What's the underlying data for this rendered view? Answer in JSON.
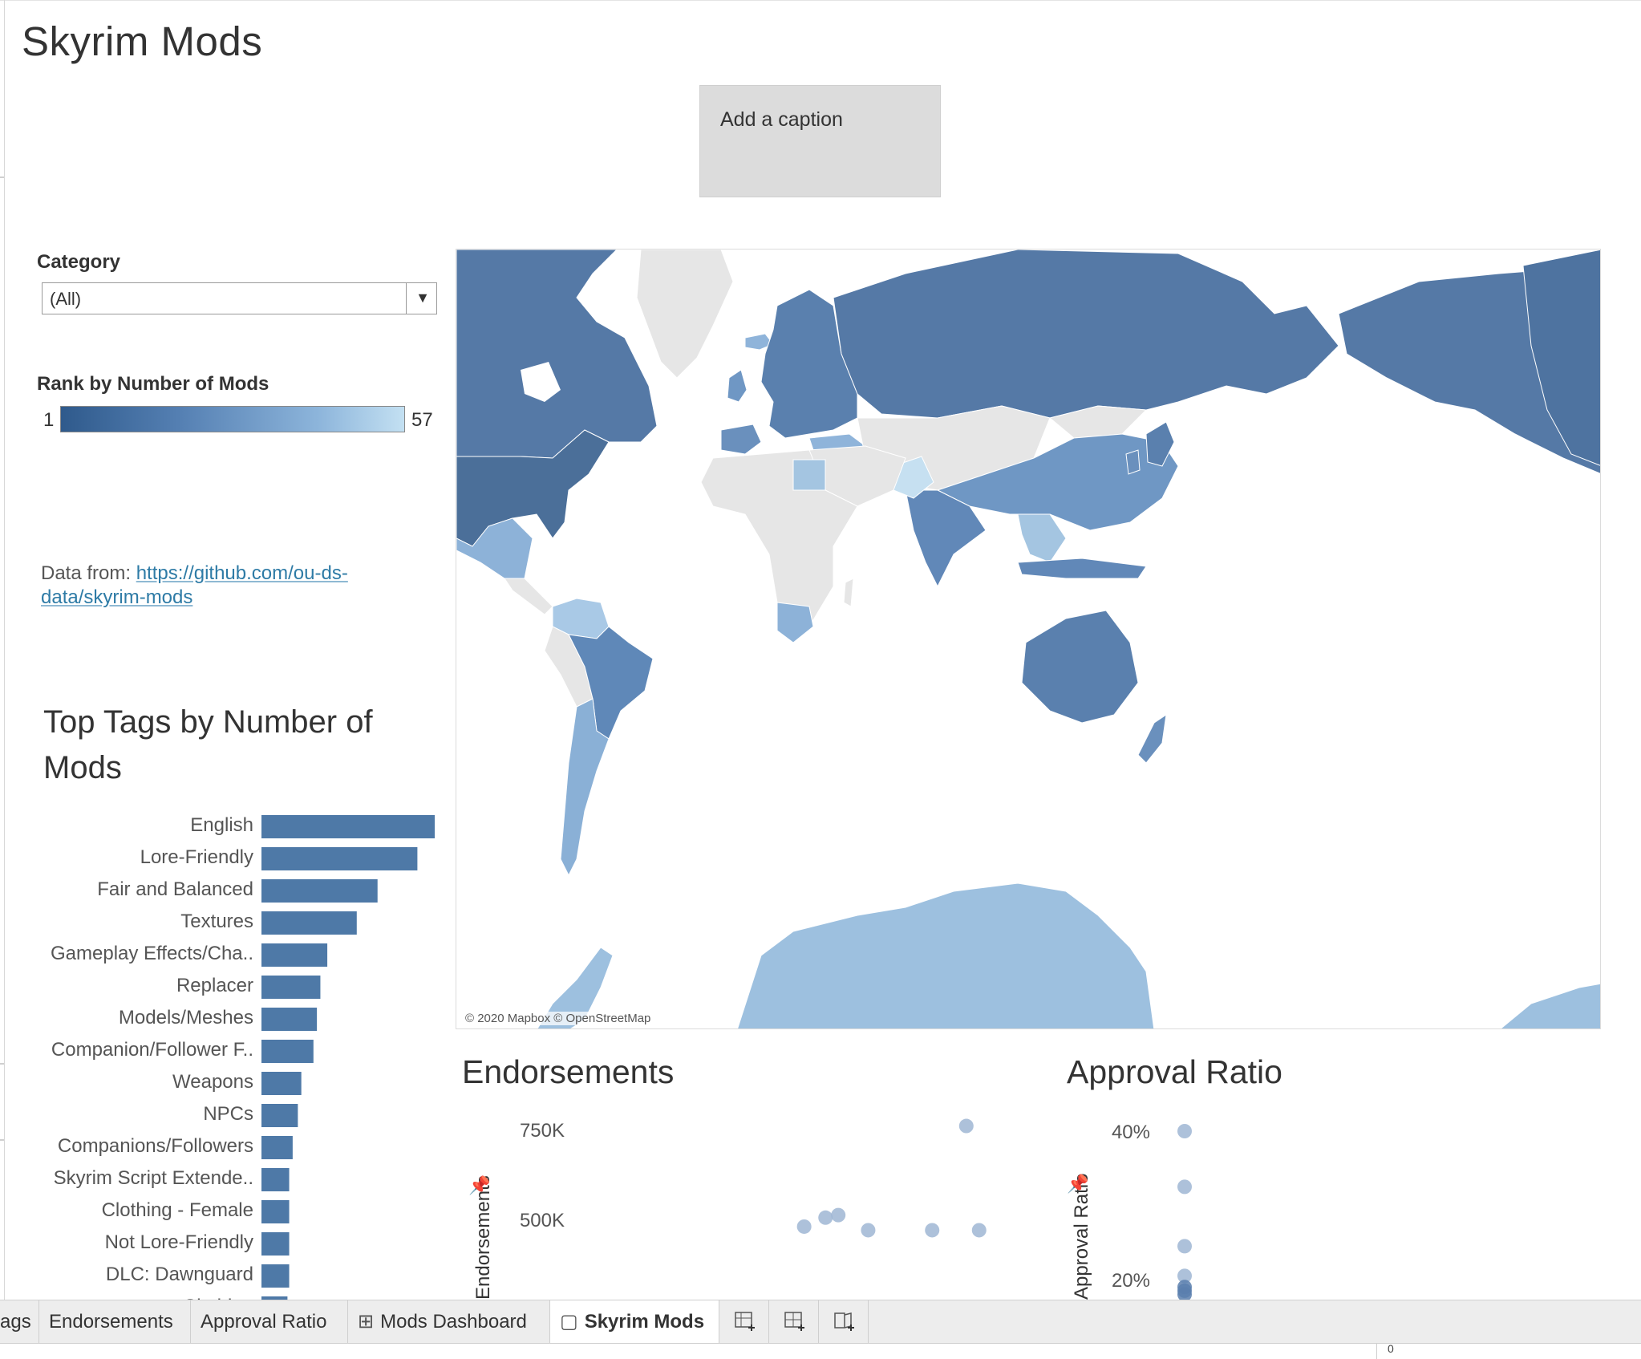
{
  "story": {
    "title": "Skyrim Mods"
  },
  "caption": {
    "text": "Add a caption"
  },
  "filter": {
    "label": "Category",
    "value": "(All)"
  },
  "legend": {
    "label": "Rank by Number of Mods",
    "min": "1",
    "max": "57",
    "colors": [
      "#2f5a8c",
      "#5580b3",
      "#8db5db",
      "#c3e0f2"
    ]
  },
  "source": {
    "prefix": "Data from: ",
    "link": "https://github.com/ou-ds-data/skyrim-mods"
  },
  "tags": {
    "title": "Top Tags by Number of Mods",
    "bar_color": "#4e79a7",
    "chart_data": {
      "type": "bar",
      "orientation": "horizontal",
      "categories": [
        "English",
        "Lore-Friendly",
        "Fair and Balanced",
        "Textures",
        "Gameplay Effects/Cha..",
        "Replacer",
        "Models/Meshes",
        "Companion/Follower F..",
        "Weapons",
        "NPCs",
        "Companions/Followers",
        "Skyrim Script Extende..",
        "Clothing - Female",
        "Not Lore-Friendly",
        "DLC: Dawnguard",
        "Clothing"
      ],
      "values": [
        100,
        90,
        67,
        55,
        38,
        34,
        32,
        30,
        23,
        21,
        18,
        16,
        16,
        16,
        16,
        15
      ]
    }
  },
  "map": {
    "attribution": "© 2020 Mapbox © OpenStreetMap",
    "colors": {
      "no_data": "#e6e6e6",
      "rank_high": "#4f76a2",
      "rank_mid": "#6f97c2",
      "rank_low": "#a4c5e1",
      "rank_lowest": "#c6e0f1"
    }
  },
  "endorsements": {
    "title": "Endorsements",
    "axis_label": "Endorsements",
    "pin_icon": "pin-icon",
    "chart_data": {
      "type": "scatter",
      "yticks": [
        "750K",
        "500K"
      ],
      "ylim": [
        0,
        850000
      ],
      "points": [
        {
          "x": 0.9,
          "y": 760000
        },
        {
          "x": 0.57,
          "y": 505000
        },
        {
          "x": 0.6,
          "y": 512000
        },
        {
          "x": 0.52,
          "y": 480000
        },
        {
          "x": 0.67,
          "y": 470000
        },
        {
          "x": 0.82,
          "y": 470000
        },
        {
          "x": 0.93,
          "y": 470000
        }
      ]
    }
  },
  "approval": {
    "title": "Approval Ratio",
    "axis_label": "Approval Ratio",
    "pin_icon": "pin-icon",
    "chart_data": {
      "type": "scatter",
      "yticks": [
        "40%",
        "20%"
      ],
      "ylim": [
        0,
        0.45
      ],
      "points": [
        {
          "x": 0.5,
          "y": 0.4
        },
        {
          "x": 0.5,
          "y": 0.325
        },
        {
          "x": 0.5,
          "y": 0.245
        },
        {
          "x": 0.5,
          "y": 0.205
        },
        {
          "x": 0.5,
          "y": 0.19
        },
        {
          "x": 0.5,
          "y": 0.185
        },
        {
          "x": 0.5,
          "y": 0.18
        }
      ]
    }
  },
  "tabs": [
    {
      "label": "ags",
      "icon": ""
    },
    {
      "label": "Endorsements",
      "icon": ""
    },
    {
      "label": "Approval Ratio",
      "icon": ""
    },
    {
      "label": "Mods Dashboard",
      "icon": "dashboard-icon"
    },
    {
      "label": "Skyrim Mods",
      "icon": "story-icon"
    }
  ],
  "new_tabs": [
    "new-worksheet-icon",
    "new-dashboard-icon",
    "new-story-icon"
  ],
  "status": {
    "zero": "0"
  }
}
